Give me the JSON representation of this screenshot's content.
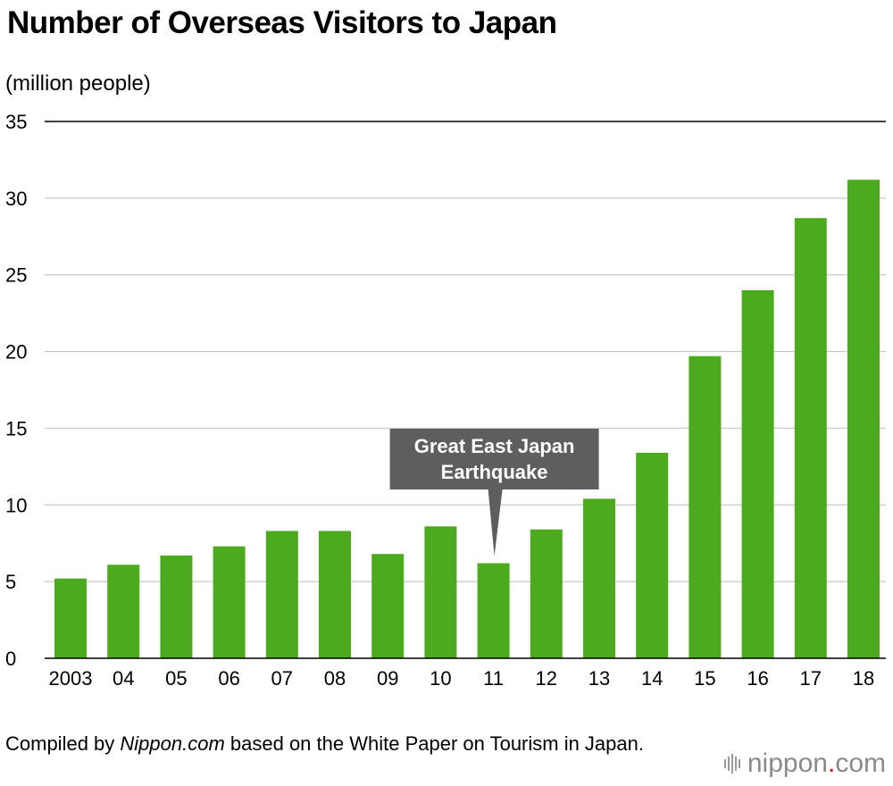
{
  "title": "Number of Overseas Visitors to Japan",
  "unit_label": "(million people)",
  "source": {
    "prefix": "Compiled by ",
    "publisher": "Nippon.com",
    "suffix": " based on the White Paper on Tourism in Japan."
  },
  "logo": {
    "name": "nippon",
    "dot": ".",
    "tld": "com"
  },
  "colors": {
    "bar": "#4caa1f",
    "callout": "#5e5e5e",
    "grid": "#c8c8c8",
    "axis": "#000000"
  },
  "chart_data": {
    "type": "bar",
    "title": "Number of Overseas Visitors to Japan",
    "xlabel": "",
    "ylabel": "(million people)",
    "categories": [
      "2003",
      "04",
      "05",
      "06",
      "07",
      "08",
      "09",
      "10",
      "11",
      "12",
      "13",
      "14",
      "15",
      "16",
      "17",
      "18"
    ],
    "values": [
      5.2,
      6.1,
      6.7,
      7.3,
      8.3,
      8.3,
      6.8,
      8.6,
      6.2,
      8.4,
      10.4,
      13.4,
      19.7,
      24.0,
      28.7,
      31.2
    ],
    "ylim": [
      0,
      35
    ],
    "yticks": [
      0,
      5,
      10,
      15,
      20,
      25,
      30,
      35
    ],
    "grid": true,
    "annotation": {
      "category": "11",
      "lines": [
        "Great East Japan",
        "Earthquake"
      ]
    }
  }
}
